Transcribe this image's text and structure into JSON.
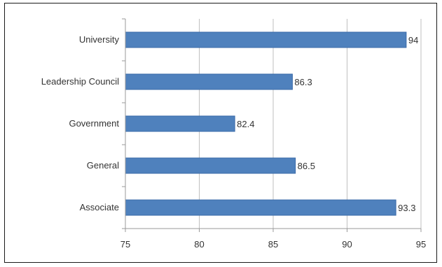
{
  "chart_data": {
    "type": "bar",
    "orientation": "horizontal",
    "categories": [
      "University",
      "Leadership Council",
      "Government",
      "General",
      "Associate"
    ],
    "values": [
      94,
      86.3,
      82.4,
      86.5,
      93.3
    ],
    "data_labels": [
      "94",
      "86.3",
      "82.4",
      "86.5",
      "93.3"
    ],
    "xlim": [
      75,
      95
    ],
    "x_ticks": [
      75,
      80,
      85,
      90,
      95
    ],
    "x_tick_labels": [
      "75",
      "80",
      "85",
      "90",
      "95"
    ],
    "grid": true,
    "legend": "none",
    "bar_color": "#4f81bd",
    "bar_edge_color": "#3a6aa8",
    "grid_color": "#bfbfbf",
    "axis_color": "#9a9a9a"
  }
}
